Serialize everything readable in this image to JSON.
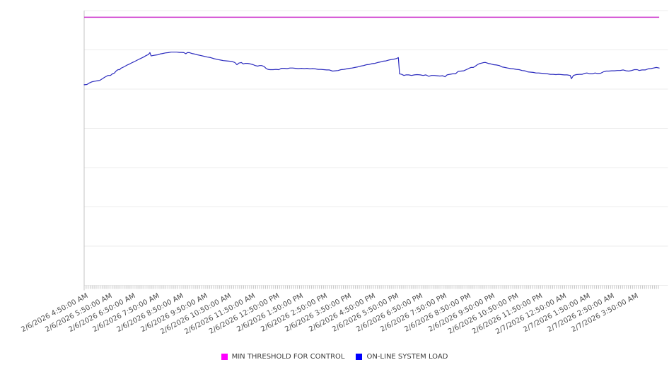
{
  "page": {
    "background": "#ffffff"
  },
  "colors": {
    "gridline": "#ececec",
    "axis": "#c4c4c4",
    "tick": "#c4c4c4",
    "axis_label_text": "#4d4d4d",
    "legend_text": "#3c3c3c",
    "threshold_line": "#cc33cc",
    "threshold_swatch": "#ff00ff",
    "load_line": "#2b2bbe",
    "load_swatch": "#0000ff"
  },
  "chart_data": {
    "type": "line",
    "title": "",
    "xlabel": "",
    "ylabel": "",
    "x_axis": {
      "tick_labels": [
        "2/6/2026 4:50:00 AM",
        "2/6/2026 5:50:00 AM",
        "2/6/2026 6:50:00 AM",
        "2/6/2026 7:50:00 AM",
        "2/6/2026 8:50:00 AM",
        "2/6/2026 9:50:00 AM",
        "2/6/2026 10:50:00 AM",
        "2/6/2026 11:50:00 AM",
        "2/6/2026 12:50:00 PM",
        "2/6/2026 1:50:00 PM",
        "2/6/2026 2:50:00 PM",
        "2/6/2026 3:50:00 PM",
        "2/6/2026 4:50:00 PM",
        "2/6/2026 5:50:00 PM",
        "2/6/2026 6:50:00 PM",
        "2/6/2026 7:50:00 PM",
        "2/6/2026 8:50:00 PM",
        "2/6/2026 9:50:00 PM",
        "2/6/2026 10:50:00 PM",
        "2/6/2026 11:50:00 PM",
        "2/7/2026 12:50:00 AM",
        "2/7/2026 1:50:00 AM",
        "2/7/2026 2:50:00 AM",
        "2/7/2026 3:50:00 AM"
      ],
      "label_interval_minutes": 60,
      "minor_tick_interval_minutes": 5,
      "range_minutes": [
        0,
        1464
      ]
    },
    "y_axis": {
      "labels_visible": false,
      "gridline_count": 8,
      "range": [
        0,
        100
      ],
      "unit": "relative load (axis unlabeled; 0-100 = fraction of plot height)"
    },
    "grid": "horizontal-only",
    "legend_position": "bottom-center",
    "series": [
      {
        "name": "MIN THRESHOLD FOR CONTROL",
        "type": "constant",
        "value": 97.6,
        "x_span_minutes": [
          0,
          1442
        ]
      },
      {
        "name": "ON-LINE SYSTEM LOAD",
        "type": "line",
        "points": [
          [
            0,
            73
          ],
          [
            7,
            73.1
          ],
          [
            12,
            73.6
          ],
          [
            20,
            74.1
          ],
          [
            27,
            74.3
          ],
          [
            34,
            74.5
          ],
          [
            39,
            74.6
          ],
          [
            46,
            75.2
          ],
          [
            51,
            75.7
          ],
          [
            57,
            76.2
          ],
          [
            60,
            76.4
          ],
          [
            66,
            76.4
          ],
          [
            71,
            77
          ],
          [
            76,
            77.3
          ],
          [
            80,
            78
          ],
          [
            85,
            78.5
          ],
          [
            89,
            78.5
          ],
          [
            92,
            79
          ],
          [
            98,
            79.4
          ],
          [
            103,
            79.8
          ],
          [
            108,
            80.2
          ],
          [
            114,
            80.6
          ],
          [
            121,
            81.1
          ],
          [
            128,
            81.6
          ],
          [
            135,
            82.1
          ],
          [
            142,
            82.6
          ],
          [
            149,
            83.1
          ],
          [
            156,
            83.7
          ],
          [
            161,
            84
          ],
          [
            165,
            84.7
          ],
          [
            168,
            83.5
          ],
          [
            174,
            83.7
          ],
          [
            179,
            83.8
          ],
          [
            184,
            83.9
          ],
          [
            190,
            84.2
          ],
          [
            197,
            84.4
          ],
          [
            204,
            84.6
          ],
          [
            211,
            84.7
          ],
          [
            218,
            84.9
          ],
          [
            225,
            84.9
          ],
          [
            232,
            84.9
          ],
          [
            239,
            84.8
          ],
          [
            245,
            84.8
          ],
          [
            250,
            84.7
          ],
          [
            255,
            84.3
          ],
          [
            259,
            84.7
          ],
          [
            264,
            84.7
          ],
          [
            270,
            84.4
          ],
          [
            277,
            84.2
          ],
          [
            284,
            83.9
          ],
          [
            291,
            83.7
          ],
          [
            300,
            83.4
          ],
          [
            309,
            83.1
          ],
          [
            317,
            82.9
          ],
          [
            326,
            82.5
          ],
          [
            335,
            82.2
          ],
          [
            342,
            82
          ],
          [
            349,
            81.8
          ],
          [
            357,
            81.7
          ],
          [
            364,
            81.6
          ],
          [
            371,
            81.5
          ],
          [
            378,
            81.1
          ],
          [
            383,
            80.3
          ],
          [
            388,
            80.9
          ],
          [
            394,
            81.1
          ],
          [
            399,
            80.6
          ],
          [
            404,
            80.8
          ],
          [
            410,
            80.8
          ],
          [
            417,
            80.6
          ],
          [
            424,
            80.3
          ],
          [
            429,
            80
          ],
          [
            435,
            79.8
          ],
          [
            440,
            80
          ],
          [
            445,
            80
          ],
          [
            451,
            79.7
          ],
          [
            456,
            79
          ],
          [
            461,
            78.6
          ],
          [
            466,
            78.5
          ],
          [
            474,
            78.5
          ],
          [
            481,
            78.6
          ],
          [
            488,
            78.5
          ],
          [
            495,
            79
          ],
          [
            502,
            79
          ],
          [
            509,
            78.9
          ],
          [
            516,
            79.1
          ],
          [
            523,
            79.1
          ],
          [
            530,
            79
          ],
          [
            537,
            78.9
          ],
          [
            545,
            79
          ],
          [
            552,
            78.9
          ],
          [
            559,
            79
          ],
          [
            566,
            78.8
          ],
          [
            573,
            78.9
          ],
          [
            580,
            78.8
          ],
          [
            587,
            78.6
          ],
          [
            594,
            78.6
          ],
          [
            601,
            78.5
          ],
          [
            608,
            78.4
          ],
          [
            615,
            78.4
          ],
          [
            623,
            78
          ],
          [
            630,
            78.1
          ],
          [
            637,
            78.2
          ],
          [
            644,
            78.5
          ],
          [
            651,
            78.6
          ],
          [
            658,
            78.8
          ],
          [
            665,
            79
          ],
          [
            672,
            79.1
          ],
          [
            679,
            79.3
          ],
          [
            686,
            79.5
          ],
          [
            693,
            79.8
          ],
          [
            701,
            80
          ],
          [
            708,
            80.3
          ],
          [
            715,
            80.4
          ],
          [
            722,
            80.7
          ],
          [
            729,
            80.8
          ],
          [
            736,
            81.1
          ],
          [
            743,
            81.3
          ],
          [
            750,
            81.6
          ],
          [
            757,
            81.7
          ],
          [
            764,
            82
          ],
          [
            771,
            82.2
          ],
          [
            779,
            82.4
          ],
          [
            784,
            82.6
          ],
          [
            788,
            82.9
          ],
          [
            791,
            77
          ],
          [
            796,
            76.8
          ],
          [
            802,
            76.4
          ],
          [
            807,
            76.6
          ],
          [
            814,
            76.6
          ],
          [
            821,
            76.4
          ],
          [
            828,
            76.6
          ],
          [
            835,
            76.7
          ],
          [
            843,
            76.6
          ],
          [
            850,
            76.4
          ],
          [
            857,
            76.6
          ],
          [
            864,
            76.1
          ],
          [
            871,
            76.4
          ],
          [
            878,
            76.4
          ],
          [
            885,
            76.3
          ],
          [
            892,
            76.2
          ],
          [
            899,
            76.3
          ],
          [
            905,
            75.9
          ],
          [
            910,
            76.6
          ],
          [
            917,
            76.8
          ],
          [
            924,
            77
          ],
          [
            931,
            77
          ],
          [
            938,
            77.9
          ],
          [
            945,
            78
          ],
          [
            952,
            78.1
          ],
          [
            960,
            78.6
          ],
          [
            965,
            79
          ],
          [
            970,
            79.3
          ],
          [
            976,
            79.3
          ],
          [
            981,
            79.8
          ],
          [
            986,
            80.3
          ],
          [
            991,
            80.7
          ],
          [
            997,
            80.9
          ],
          [
            1002,
            81.1
          ],
          [
            1007,
            81.1
          ],
          [
            1013,
            80.8
          ],
          [
            1020,
            80.6
          ],
          [
            1027,
            80.3
          ],
          [
            1034,
            80.2
          ],
          [
            1041,
            80
          ],
          [
            1048,
            79.5
          ],
          [
            1055,
            79.3
          ],
          [
            1062,
            79.1
          ],
          [
            1070,
            78.9
          ],
          [
            1077,
            78.8
          ],
          [
            1084,
            78.6
          ],
          [
            1091,
            78.5
          ],
          [
            1098,
            78.2
          ],
          [
            1105,
            78.1
          ],
          [
            1112,
            77.7
          ],
          [
            1119,
            77.6
          ],
          [
            1126,
            77.5
          ],
          [
            1133,
            77.3
          ],
          [
            1140,
            77.3
          ],
          [
            1148,
            77.2
          ],
          [
            1155,
            77.1
          ],
          [
            1162,
            77
          ],
          [
            1169,
            76.8
          ],
          [
            1176,
            76.8
          ],
          [
            1183,
            76.7
          ],
          [
            1190,
            76.8
          ],
          [
            1197,
            76.7
          ],
          [
            1204,
            76.6
          ],
          [
            1211,
            76.6
          ],
          [
            1219,
            76.4
          ],
          [
            1222,
            75.2
          ],
          [
            1227,
            76.4
          ],
          [
            1234,
            76.7
          ],
          [
            1242,
            76.8
          ],
          [
            1249,
            76.8
          ],
          [
            1256,
            77.2
          ],
          [
            1261,
            77.3
          ],
          [
            1268,
            77
          ],
          [
            1275,
            77
          ],
          [
            1281,
            77.3
          ],
          [
            1288,
            77.1
          ],
          [
            1295,
            77.2
          ],
          [
            1302,
            77.7
          ],
          [
            1309,
            78
          ],
          [
            1316,
            78
          ],
          [
            1323,
            78.1
          ],
          [
            1330,
            78.1
          ],
          [
            1337,
            78.2
          ],
          [
            1344,
            78.2
          ],
          [
            1352,
            78.4
          ],
          [
            1359,
            78.1
          ],
          [
            1366,
            78
          ],
          [
            1373,
            78.2
          ],
          [
            1380,
            78.5
          ],
          [
            1387,
            78.5
          ],
          [
            1392,
            78.2
          ],
          [
            1399,
            78.4
          ],
          [
            1407,
            78.4
          ],
          [
            1414,
            78.8
          ],
          [
            1421,
            78.9
          ],
          [
            1428,
            79.1
          ],
          [
            1435,
            79.3
          ],
          [
            1442,
            79.1
          ]
        ]
      }
    ],
    "legend": {
      "items": [
        {
          "label": "MIN THRESHOLD FOR CONTROL",
          "swatch_color": "#ff00ff"
        },
        {
          "label": "ON-LINE SYSTEM LOAD",
          "swatch_color": "#0000ff"
        }
      ]
    }
  }
}
